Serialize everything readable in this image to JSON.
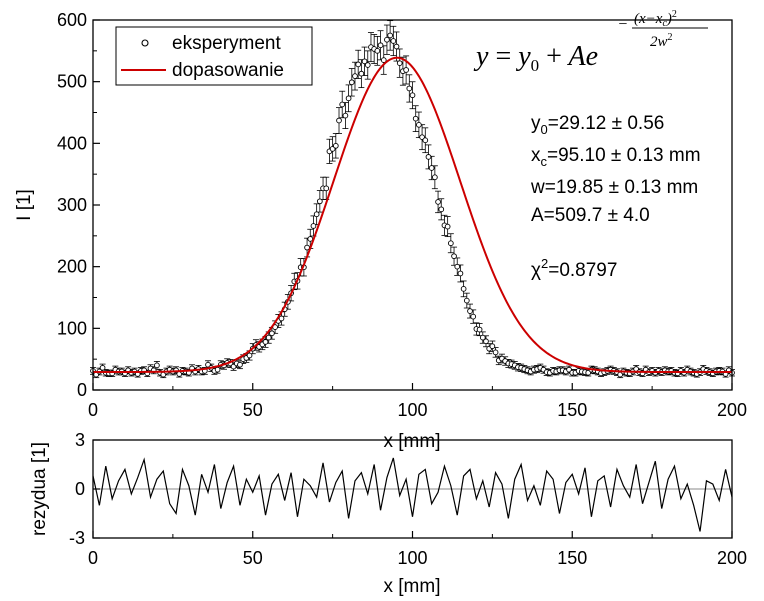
{
  "chart_data": [
    {
      "type": "scatter",
      "xlabel": "x [mm]",
      "ylabel": "I [1]",
      "xlim": [
        0,
        200
      ],
      "ylim": [
        0,
        600
      ],
      "x_ticks": [
        "0",
        "50",
        "100",
        "150",
        "200"
      ],
      "y_ticks": [
        "0",
        "100",
        "200",
        "300",
        "400",
        "500",
        "600"
      ],
      "legend": {
        "placement": "top-left",
        "entries": [
          "eksperyment",
          "dopasowanie"
        ]
      },
      "equation": {
        "lhs": "y",
        "rhs_base": "y",
        "rhs_base_sub": "0",
        "plus": "+",
        "amp": "Ae",
        "exp_minus": "−",
        "exp_numerator": "(x−x",
        "exp_numerator_sub": "c",
        "exp_numerator_close": ")",
        "exp_numerator_pow": "2",
        "exp_denominator": "2w",
        "exp_denominator_pow": "2"
      },
      "fit_parameters": {
        "y0": {
          "symbol": "y",
          "sub": "0",
          "text": "=29.12 ± 0.56"
        },
        "xc": {
          "symbol": "x",
          "sub": "c",
          "text": "=95.10 ± 0.13 mm"
        },
        "w": {
          "text": "w=19.85 ± 0.13 mm"
        },
        "A": {
          "text": "A=509.7 ± 4.0"
        },
        "chi2": {
          "symbol": "χ",
          "sup": "2",
          "text": "=0.8797"
        }
      },
      "fit": {
        "y0": 29.12,
        "A": 509.7,
        "xc": 95.1,
        "w": 19.85
      },
      "series": [
        {
          "name": "eksperyment",
          "style": "open-circle-markers-with-error-bars",
          "x": [
            0,
            1,
            2,
            3,
            4,
            5,
            6,
            7,
            8,
            9,
            10,
            11,
            12,
            13,
            14,
            15,
            16,
            17,
            18,
            19,
            20,
            21,
            22,
            23,
            24,
            25,
            26,
            27,
            28,
            29,
            30,
            31,
            32,
            33,
            34,
            35,
            36,
            37,
            38,
            39,
            40,
            41,
            42,
            43,
            44,
            45,
            46,
            47,
            48,
            49,
            50,
            51,
            52,
            53,
            54,
            55,
            56,
            57,
            58,
            59,
            60,
            61,
            62,
            63,
            64,
            65,
            66,
            67,
            68,
            69,
            70,
            71,
            72,
            73,
            74,
            75,
            76,
            77,
            78,
            79,
            80,
            81,
            82,
            83,
            84,
            85,
            86,
            87,
            88,
            89,
            90,
            91,
            92,
            93,
            94,
            95,
            96,
            97,
            98,
            99,
            100,
            101,
            102,
            103,
            104,
            105,
            106,
            107,
            108,
            109,
            110,
            111,
            112,
            113,
            114,
            115,
            116,
            117,
            118,
            119,
            120,
            121,
            122,
            123,
            124,
            125,
            126,
            127,
            128,
            129,
            130,
            131,
            132,
            133,
            134,
            135,
            136,
            137,
            138,
            139,
            140,
            141,
            142,
            143,
            144,
            145,
            146,
            147,
            148,
            149,
            150,
            151,
            152,
            153,
            154,
            155,
            156,
            157,
            158,
            159,
            160,
            161,
            162,
            163,
            164,
            165,
            166,
            167,
            168,
            169,
            170,
            171,
            172,
            173,
            174,
            175,
            176,
            177,
            178,
            179,
            180,
            181,
            182,
            183,
            184,
            185,
            186,
            187,
            188,
            189,
            190,
            191,
            192,
            193,
            194,
            195,
            196,
            197,
            198,
            199,
            200
          ],
          "y": [
            31,
            25,
            30,
            36,
            28,
            27,
            27,
            33,
            30,
            30,
            27,
            32,
            28,
            30,
            26,
            31,
            32,
            27,
            35,
            32,
            40,
            28,
            25,
            30,
            33,
            30,
            32,
            26,
            31,
            30,
            28,
            35,
            30,
            34,
            30,
            31,
            41,
            36,
            31,
            33,
            41,
            40,
            44,
            43,
            38,
            43,
            41,
            50,
            52,
            56,
            67,
            73,
            70,
            74,
            78,
            85,
            92,
            102,
            112,
            116,
            131,
            143,
            157,
            176,
            177,
            199,
            199,
            231,
            245,
            266,
            285,
            306,
            327,
            327,
            387,
            391,
            396,
            437,
            463,
            445,
            473,
            499,
            509,
            528,
            513,
            533,
            527,
            556,
            553,
            550,
            559,
            535,
            568,
            575,
            566,
            557,
            530,
            517,
            519,
            489,
            478,
            440,
            430,
            410,
            405,
            378,
            360,
            345,
            305,
            293,
            267,
            265,
            238,
            217,
            200,
            189,
            164,
            145,
            128,
            119,
            99,
            98,
            85,
            79,
            67,
            71,
            61,
            48,
            51,
            47,
            43,
            42,
            40,
            37,
            36,
            34,
            32,
            30,
            33,
            34,
            36,
            33,
            29,
            28,
            31,
            30,
            32,
            32,
            30,
            33,
            28,
            28,
            31,
            30,
            29,
            28,
            33,
            32,
            30,
            27,
            29,
            31,
            33,
            31,
            29,
            25,
            30,
            28,
            27,
            30,
            34,
            29,
            27,
            33,
            29,
            31,
            28,
            31,
            29,
            32,
            30,
            31,
            28,
            27,
            31,
            28,
            33,
            30,
            28,
            26,
            29,
            34,
            31,
            29,
            27,
            30,
            31,
            30,
            26,
            32,
            28
          ],
          "error": "±sqrt(y)"
        },
        {
          "name": "dopasowanie",
          "style": "line",
          "color": "#cc0000"
        }
      ]
    },
    {
      "type": "line",
      "xlabel": "x [mm]",
      "ylabel": "rezydua [1]",
      "xlim": [
        0,
        200
      ],
      "ylim": [
        -3,
        3
      ],
      "x_ticks": [
        "0",
        "50",
        "100",
        "150",
        "200"
      ],
      "y_ticks": [
        "3",
        "0",
        "-3"
      ],
      "zero_line": true,
      "series": [
        {
          "name": "rezydua",
          "x": [
            0,
            2,
            4,
            6,
            8,
            10,
            12,
            14,
            16,
            18,
            20,
            22,
            24,
            26,
            28,
            30,
            32,
            34,
            36,
            38,
            40,
            42,
            44,
            46,
            48,
            50,
            52,
            54,
            56,
            58,
            60,
            62,
            64,
            66,
            68,
            70,
            72,
            74,
            76,
            78,
            80,
            82,
            84,
            86,
            88,
            90,
            92,
            94,
            96,
            98,
            100,
            102,
            104,
            106,
            108,
            110,
            112,
            114,
            116,
            118,
            120,
            122,
            124,
            126,
            128,
            130,
            132,
            134,
            136,
            138,
            140,
            142,
            144,
            146,
            148,
            150,
            152,
            154,
            156,
            158,
            160,
            162,
            164,
            166,
            168,
            170,
            172,
            174,
            176,
            178,
            180,
            182,
            184,
            186,
            188,
            190,
            192,
            194,
            196,
            198,
            200
          ],
          "y": [
            0.8,
            -1.0,
            1.4,
            -0.6,
            0.5,
            1.2,
            -0.3,
            0.7,
            1.8,
            -0.5,
            0.6,
            1.1,
            -0.9,
            -1.5,
            1.2,
            0.2,
            -1.6,
            0.9,
            -0.2,
            1.5,
            -1.2,
            0.4,
            1.4,
            -1.0,
            0.6,
            -0.2,
            0.8,
            -1.6,
            0.3,
            0.9,
            -0.7,
            1.0,
            -1.7,
            0.6,
            0.2,
            -0.5,
            1.6,
            -0.8,
            0.4,
            1.1,
            -1.8,
            0.5,
            1.0,
            -0.3,
            1.5,
            -1.3,
            0.7,
            1.9,
            -0.4,
            0.6,
            -1.7,
            0.9,
            1.2,
            -0.9,
            -0.2,
            1.4,
            0.2,
            -1.6,
            0.8,
            1.2,
            -0.6,
            0.5,
            -1.1,
            1.0,
            0.3,
            -1.8,
            0.6,
            1.5,
            -0.7,
            0.2,
            -1.0,
            1.1,
            0.6,
            -1.5,
            0.4,
            0.9,
            -0.3,
            1.3,
            -1.7,
            0.5,
            0.8,
            -1.1,
            1.2,
            0.2,
            -0.5,
            1.5,
            -0.9,
            0.4,
            1.7,
            -1.2,
            0.6,
            1.4,
            -0.6,
            0.3,
            -1.0,
            -2.6,
            0.5,
            0.3,
            -0.7,
            1.2,
            -0.5
          ]
        }
      ]
    }
  ]
}
